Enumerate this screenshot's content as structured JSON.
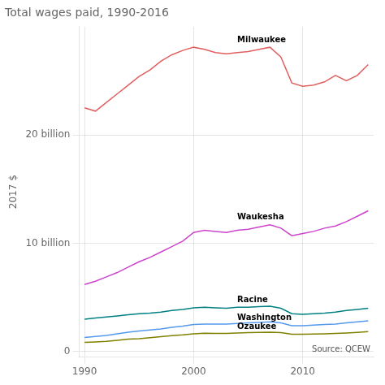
{
  "chart_data": {
    "type": "line",
    "title": "Total wages paid, 1990-2016",
    "y_label": "2017 $",
    "x": [
      1990,
      1991,
      1992,
      1993,
      1994,
      1995,
      1996,
      1997,
      1998,
      1999,
      2000,
      2001,
      2002,
      2003,
      2004,
      2005,
      2006,
      2007,
      2008,
      2009,
      2010,
      2011,
      2012,
      2013,
      2014,
      2015,
      2016
    ],
    "series": [
      {
        "name": "Milwaukee",
        "color": "#e06060",
        "values": [
          22.5,
          22.2,
          23.0,
          23.8,
          24.6,
          25.4,
          26.0,
          26.8,
          27.4,
          27.8,
          28.1,
          27.9,
          27.6,
          27.5,
          27.6,
          27.7,
          27.9,
          28.1,
          27.2,
          24.8,
          24.5,
          24.6,
          24.9,
          25.5,
          25.0,
          25.5,
          26.5
        ]
      },
      {
        "name": "Waukesha",
        "color": "#cc44cc",
        "values": [
          6.2,
          6.5,
          6.9,
          7.3,
          7.8,
          8.3,
          8.7,
          9.2,
          9.7,
          10.2,
          11.0,
          11.2,
          11.1,
          11.0,
          11.2,
          11.3,
          11.5,
          11.7,
          11.4,
          10.7,
          10.9,
          11.1,
          11.4,
          11.6,
          12.0,
          12.5,
          13.0
        ]
      },
      {
        "name": "Racine",
        "color": "#008080",
        "values": [
          3.0,
          3.1,
          3.2,
          3.3,
          3.4,
          3.5,
          3.55,
          3.65,
          3.8,
          3.9,
          4.05,
          4.1,
          4.05,
          4.0,
          4.1,
          4.1,
          4.15,
          4.2,
          4.0,
          3.5,
          3.45,
          3.5,
          3.55,
          3.65,
          3.8,
          3.9,
          4.0
        ]
      },
      {
        "name": "Washington",
        "color": "#5599ee",
        "values": [
          1.3,
          1.4,
          1.5,
          1.65,
          1.8,
          1.9,
          2.0,
          2.1,
          2.25,
          2.35,
          2.5,
          2.55,
          2.55,
          2.55,
          2.6,
          2.65,
          2.7,
          2.75,
          2.65,
          2.4,
          2.4,
          2.45,
          2.5,
          2.55,
          2.65,
          2.75,
          2.85
        ]
      },
      {
        "name": "Ozaukee",
        "color": "#808000",
        "values": [
          0.85,
          0.9,
          0.95,
          1.05,
          1.15,
          1.2,
          1.28,
          1.38,
          1.48,
          1.55,
          1.65,
          1.7,
          1.68,
          1.68,
          1.72,
          1.75,
          1.78,
          1.8,
          1.75,
          1.6,
          1.6,
          1.62,
          1.65,
          1.68,
          1.72,
          1.78,
          1.85
        ]
      }
    ],
    "annotations": [
      {
        "text": "Milwaukee",
        "x": 2004,
        "y": 28.4
      },
      {
        "text": "Waukesha",
        "x": 2004,
        "y": 12.0
      },
      {
        "text": "Racine",
        "x": 2004,
        "y": 4.4
      },
      {
        "text": "Washington",
        "x": 2004,
        "y": 2.75
      },
      {
        "text": "Ozaukee",
        "x": 2004,
        "y": 1.88
      },
      {
        "text": "Source: QCEW"
      }
    ],
    "xlim": [
      1989.5,
      2016.5
    ],
    "xticks": [
      1990,
      2000,
      2010
    ],
    "ylim": [
      -0.5,
      30
    ],
    "yticks": [
      0,
      {
        "value": 10,
        "label": "10 billion"
      },
      {
        "value": 20,
        "label": "20 billion"
      }
    ],
    "grid": true
  }
}
